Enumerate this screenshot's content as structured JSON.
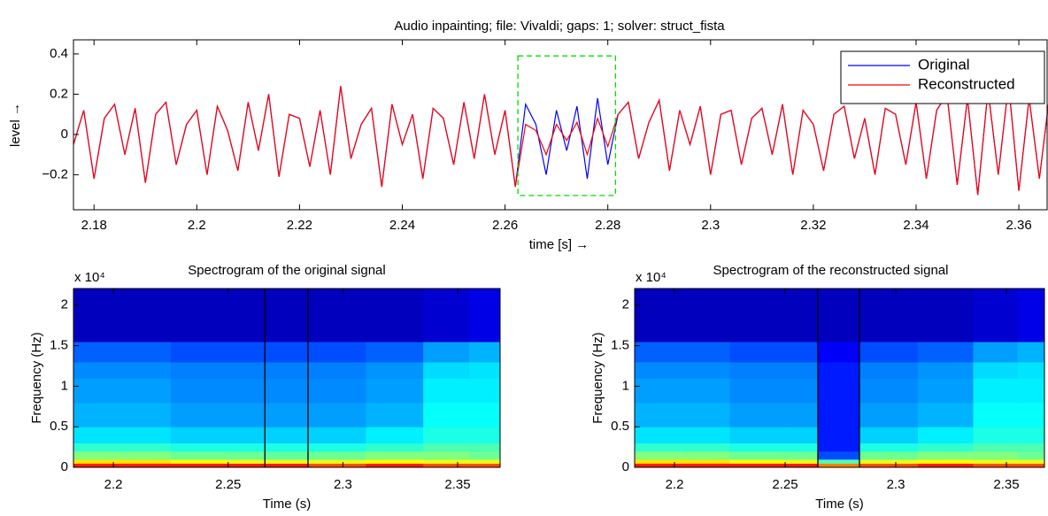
{
  "chart_data": [
    {
      "type": "line",
      "title": "Audio inpainting; file: Vivaldi; gaps: 1; solver: struct_fista",
      "xlabel": "time [s] →",
      "ylabel": "level →",
      "x": [
        2.176,
        2.178,
        2.18,
        2.182,
        2.184,
        2.186,
        2.188,
        2.19,
        2.192,
        2.194,
        2.196,
        2.198,
        2.2,
        2.202,
        2.204,
        2.206,
        2.208,
        2.21,
        2.212,
        2.214,
        2.216,
        2.218,
        2.22,
        2.222,
        2.224,
        2.226,
        2.228,
        2.23,
        2.232,
        2.234,
        2.236,
        2.238,
        2.24,
        2.242,
        2.244,
        2.246,
        2.248,
        2.25,
        2.252,
        2.254,
        2.256,
        2.258,
        2.26,
        2.262,
        2.264,
        2.266,
        2.268,
        2.27,
        2.272,
        2.274,
        2.276,
        2.278,
        2.28,
        2.282,
        2.284,
        2.286,
        2.288,
        2.29,
        2.292,
        2.294,
        2.296,
        2.298,
        2.3,
        2.302,
        2.304,
        2.306,
        2.308,
        2.31,
        2.312,
        2.314,
        2.316,
        2.318,
        2.32,
        2.322,
        2.324,
        2.326,
        2.328,
        2.33,
        2.332,
        2.334,
        2.336,
        2.338,
        2.34,
        2.342,
        2.344,
        2.346,
        2.348,
        2.35,
        2.352,
        2.354,
        2.356,
        2.358,
        2.36,
        2.362,
        2.364,
        2.366
      ],
      "series": [
        {
          "name": "Original",
          "color": "#0000ff",
          "values": [
            -0.05,
            0.12,
            -0.22,
            0.08,
            0.15,
            -0.1,
            0.13,
            -0.24,
            0.1,
            0.16,
            -0.15,
            0.05,
            0.12,
            -0.2,
            0.14,
            0.02,
            -0.18,
            0.16,
            -0.08,
            0.2,
            -0.21,
            0.1,
            0.08,
            -0.16,
            0.12,
            -0.2,
            0.24,
            -0.12,
            0.05,
            0.13,
            -0.26,
            0.15,
            -0.05,
            0.1,
            -0.22,
            0.13,
            0.08,
            -0.15,
            0.16,
            -0.12,
            0.2,
            -0.1,
            0.12,
            -0.26,
            0.15,
            0.05,
            -0.2,
            0.12,
            -0.08,
            0.14,
            -0.22,
            0.18,
            -0.15,
            0.1,
            0.16,
            -0.12,
            0.06,
            0.17,
            -0.18,
            0.12,
            -0.05,
            0.14,
            -0.2,
            0.1,
            0.12,
            -0.15,
            0.08,
            0.13,
            -0.1,
            0.15,
            -0.2,
            0.12,
            0.05,
            -0.18,
            0.1,
            0.14,
            -0.12,
            0.08,
            -0.2,
            0.13,
            0.1,
            -0.15,
            0.16,
            -0.22,
            0.12,
            0.2,
            -0.25,
            0.18,
            -0.3,
            0.22,
            -0.2,
            0.25,
            -0.28,
            0.18,
            -0.22,
            0.2
          ]
        },
        {
          "name": "Reconstructed",
          "color": "#ff0000",
          "values": [
            -0.05,
            0.12,
            -0.22,
            0.08,
            0.15,
            -0.1,
            0.13,
            -0.24,
            0.1,
            0.16,
            -0.15,
            0.05,
            0.12,
            -0.2,
            0.14,
            0.02,
            -0.18,
            0.16,
            -0.08,
            0.2,
            -0.21,
            0.1,
            0.08,
            -0.16,
            0.12,
            -0.2,
            0.24,
            -0.12,
            0.05,
            0.13,
            -0.26,
            0.15,
            -0.05,
            0.1,
            -0.22,
            0.13,
            0.08,
            -0.15,
            0.16,
            -0.12,
            0.2,
            -0.1,
            0.12,
            -0.26,
            0.05,
            0.02,
            -0.1,
            0.05,
            -0.03,
            0.06,
            -0.1,
            0.08,
            -0.06,
            0.1,
            0.16,
            -0.12,
            0.06,
            0.17,
            -0.18,
            0.12,
            -0.05,
            0.14,
            -0.2,
            0.1,
            0.12,
            -0.15,
            0.08,
            0.13,
            -0.1,
            0.15,
            -0.2,
            0.12,
            0.05,
            -0.18,
            0.1,
            0.14,
            -0.12,
            0.08,
            -0.2,
            0.13,
            0.1,
            -0.15,
            0.16,
            -0.22,
            0.12,
            0.2,
            -0.25,
            0.18,
            -0.3,
            0.22,
            -0.2,
            0.25,
            -0.28,
            0.18,
            -0.22,
            0.2
          ]
        }
      ],
      "xlim": [
        2.176,
        2.3655
      ],
      "ylim": [
        -0.374,
        0.47
      ],
      "xticks": [
        2.18,
        2.2,
        2.22,
        2.24,
        2.26,
        2.28,
        2.3,
        2.32,
        2.34,
        2.36
      ],
      "yticks": [
        {
          "value": -0.2,
          "label": "−0.2"
        },
        0,
        0.2,
        0.4
      ],
      "legend": "top-right",
      "gap_box": {
        "x": [
          2.2625,
          2.2815
        ],
        "y": [
          -0.303,
          0.39
        ],
        "color": "#00dd00"
      }
    },
    {
      "type": "heatmap",
      "title": "Spectrogram of the original signal",
      "xlabel": "Time (s)",
      "ylabel": "Frequency (Hz)",
      "y_multiplier": "x 10⁴",
      "colormap": "jet",
      "x_edges": [
        2.1826,
        2.2,
        2.225,
        2.25,
        2.266,
        2.2848,
        2.31,
        2.335,
        2.355,
        2.3685
      ],
      "y_edges": [
        0,
        500,
        1000,
        2000,
        3000,
        5000,
        8000,
        11000,
        13000,
        15500,
        22050
      ],
      "values": [
        [
          0.85,
          0.85,
          0.85,
          0.85,
          0.85,
          0.8,
          0.85,
          0.8,
          0.8
        ],
        [
          0.65,
          0.65,
          0.62,
          0.6,
          0.6,
          0.6,
          0.62,
          0.6,
          0.6
        ],
        [
          0.5,
          0.5,
          0.48,
          0.48,
          0.47,
          0.48,
          0.5,
          0.5,
          0.48
        ],
        [
          0.42,
          0.42,
          0.4,
          0.4,
          0.4,
          0.4,
          0.42,
          0.45,
          0.45
        ],
        [
          0.35,
          0.35,
          0.33,
          0.33,
          0.33,
          0.33,
          0.36,
          0.4,
          0.4
        ],
        [
          0.3,
          0.3,
          0.28,
          0.28,
          0.28,
          0.28,
          0.3,
          0.38,
          0.38
        ],
        [
          0.28,
          0.28,
          0.26,
          0.26,
          0.26,
          0.26,
          0.28,
          0.36,
          0.36
        ],
        [
          0.26,
          0.26,
          0.25,
          0.25,
          0.25,
          0.25,
          0.27,
          0.34,
          0.35
        ],
        [
          0.22,
          0.22,
          0.2,
          0.2,
          0.2,
          0.2,
          0.22,
          0.28,
          0.3
        ],
        [
          0.06,
          0.06,
          0.06,
          0.06,
          0.06,
          0.06,
          0.06,
          0.08,
          0.1
        ]
      ],
      "xlim": [
        2.1826,
        2.3685
      ],
      "ylim": [
        0,
        22050
      ],
      "xticks": [
        2.2,
        2.25,
        2.3,
        2.35
      ],
      "yticks": [
        0,
        {
          "value": 5000,
          "label": "0.5"
        },
        {
          "value": 10000,
          "label": "1"
        },
        {
          "value": 15000,
          "label": "1.5"
        },
        {
          "value": 20000,
          "label": "2"
        }
      ],
      "gap_lines": [
        2.266,
        2.2848
      ]
    },
    {
      "type": "heatmap",
      "title": "Spectrogram of the reconstructed signal",
      "xlabel": "Time (s)",
      "ylabel": "Frequency (Hz)",
      "y_multiplier": "x 10⁴",
      "colormap": "jet",
      "x_edges": [
        2.182,
        2.2,
        2.225,
        2.25,
        2.2648,
        2.2836,
        2.31,
        2.335,
        2.355,
        2.3672
      ],
      "y_edges": [
        0,
        500,
        1000,
        2000,
        3000,
        5000,
        8000,
        11000,
        13000,
        15500,
        22050
      ],
      "values": [
        [
          0.85,
          0.85,
          0.85,
          0.85,
          0.75,
          0.8,
          0.85,
          0.8,
          0.8
        ],
        [
          0.65,
          0.65,
          0.62,
          0.6,
          0.45,
          0.6,
          0.62,
          0.6,
          0.6
        ],
        [
          0.5,
          0.5,
          0.48,
          0.48,
          0.2,
          0.48,
          0.5,
          0.5,
          0.48
        ],
        [
          0.42,
          0.42,
          0.4,
          0.4,
          0.15,
          0.4,
          0.42,
          0.45,
          0.45
        ],
        [
          0.35,
          0.35,
          0.33,
          0.33,
          0.15,
          0.33,
          0.36,
          0.4,
          0.4
        ],
        [
          0.3,
          0.3,
          0.28,
          0.28,
          0.15,
          0.28,
          0.3,
          0.38,
          0.38
        ],
        [
          0.28,
          0.28,
          0.26,
          0.26,
          0.15,
          0.26,
          0.28,
          0.36,
          0.36
        ],
        [
          0.26,
          0.26,
          0.25,
          0.25,
          0.15,
          0.25,
          0.27,
          0.34,
          0.35
        ],
        [
          0.22,
          0.22,
          0.2,
          0.2,
          0.12,
          0.2,
          0.22,
          0.28,
          0.3
        ],
        [
          0.06,
          0.06,
          0.06,
          0.06,
          0.06,
          0.06,
          0.06,
          0.08,
          0.1
        ]
      ],
      "xlim": [
        2.182,
        2.3672
      ],
      "ylim": [
        0,
        22050
      ],
      "xticks": [
        2.2,
        2.25,
        2.3,
        2.35
      ],
      "yticks": [
        0,
        {
          "value": 5000,
          "label": "0.5"
        },
        {
          "value": 10000,
          "label": "1"
        },
        {
          "value": 15000,
          "label": "1.5"
        },
        {
          "value": 20000,
          "label": "2"
        }
      ],
      "gap_lines": [
        2.2648,
        2.2836
      ]
    }
  ]
}
